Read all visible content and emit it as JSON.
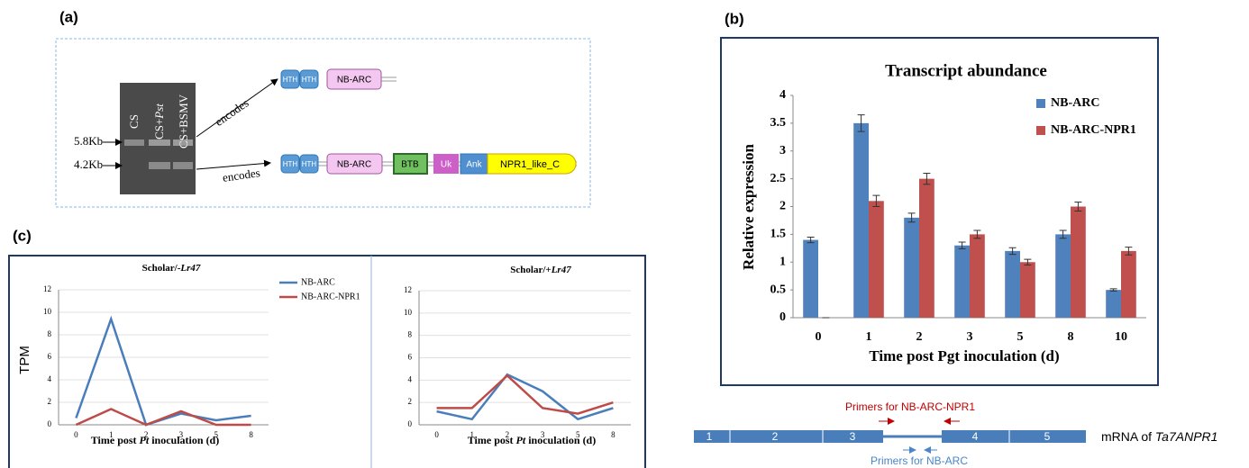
{
  "panel_labels": [
    "(a)",
    "(b)",
    "(c)"
  ],
  "gel": {
    "lanes": [
      [
        "CS"
      ],
      [
        "CS+",
        "Pst"
      ],
      [
        "CS+BSMV"
      ]
    ],
    "markers": [
      "5.8Kb",
      "4.2Kb"
    ]
  },
  "encodes": [
    "encodes",
    "encodes"
  ],
  "proteins": [
    [
      "HTH",
      "HTH",
      "NB-ARC"
    ],
    [
      "HTH",
      "HTH",
      "NB-ARC",
      "BTB",
      "Uk",
      "Ank",
      "NPR1_like_C"
    ]
  ],
  "chart_data": [
    {
      "type": "bar",
      "title": "Transcript  abundance",
      "y_label": "Relative expression",
      "x_label": "Time post  Pgt inoculation (d)",
      "categories": [
        "0",
        "1",
        "2",
        "3",
        "5",
        "8",
        "10"
      ],
      "series": [
        {
          "name": "NB-ARC",
          "color": "#4f81bd",
          "values": [
            1.4,
            3.5,
            1.8,
            1.3,
            1.2,
            1.5,
            0.5
          ],
          "errors": [
            0.05,
            0.15,
            0.08,
            0.06,
            0.06,
            0.07,
            0.02
          ]
        },
        {
          "name": "NB-ARC-NPR1",
          "color": "#c0504d",
          "values": [
            0,
            2.1,
            2.5,
            1.5,
            1.0,
            2.0,
            1.2
          ],
          "errors": [
            0,
            0.1,
            0.1,
            0.07,
            0.05,
            0.08,
            0.07
          ]
        }
      ],
      "ylim": [
        0,
        4
      ],
      "yticks": [
        0,
        0.5,
        1,
        1.5,
        2,
        2.5,
        3,
        3.5,
        4
      ]
    },
    {
      "type": "line",
      "title": [
        "Scholar/-",
        "Lr47"
      ],
      "y_label": "TPM",
      "x_label": [
        "Time post ",
        "Pt",
        " inoculation (d)"
      ],
      "categories": [
        "0",
        "1",
        "2",
        "3",
        "5",
        "8"
      ],
      "series": [
        {
          "name": "NB-ARC",
          "color": "#4a7ebb",
          "values": [
            0.6,
            9.4,
            0,
            1,
            0.4,
            0.8
          ]
        },
        {
          "name": "NB-ARC-NPR1",
          "color": "#be4b48",
          "values": [
            0,
            1.4,
            0,
            1.2,
            0,
            0
          ]
        }
      ],
      "ylim": [
        0,
        12
      ],
      "yticks": [
        0,
        2,
        4,
        6,
        8,
        10,
        12
      ],
      "grid": true
    },
    {
      "type": "line",
      "title": [
        "Scholar/+",
        "Lr47"
      ],
      "x_label": [
        "Time post ",
        "Pt",
        " inoculation (d)"
      ],
      "categories": [
        "0",
        "1",
        "2",
        "3",
        "5",
        "8"
      ],
      "series": [
        {
          "color": "#4a7ebb",
          "values": [
            1.2,
            0.5,
            4.5,
            3,
            0.5,
            1.5
          ]
        },
        {
          "color": "#be4b48",
          "values": [
            1.5,
            1.5,
            4.4,
            1.5,
            1,
            2
          ]
        }
      ],
      "ylim": [
        0,
        12
      ],
      "yticks": [
        0,
        2,
        4,
        6,
        8,
        10,
        12
      ],
      "grid": true
    }
  ],
  "primer_diagram": {
    "primers_top": "Primers for NB-ARC-NPR1",
    "exons": [
      "1",
      "2",
      "3",
      "4",
      "5"
    ],
    "mrna_label": [
      "mRNA of ",
      "Ta7ANPR1"
    ],
    "primers_bottom": "Primers for NB-ARC"
  }
}
